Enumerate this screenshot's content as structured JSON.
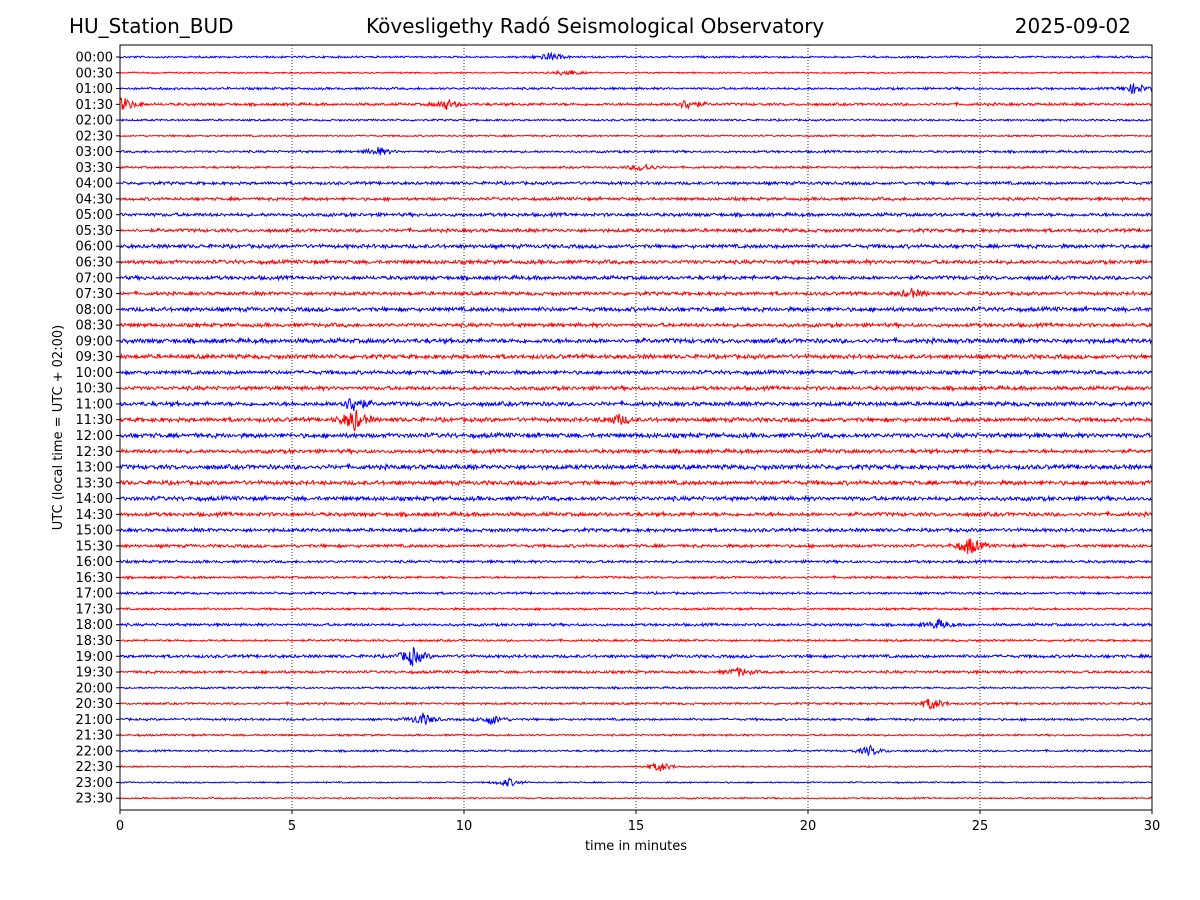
{
  "header": {
    "station": "HU_Station_BUD",
    "observatory": "Kövesligethy Radó Seismological Observatory",
    "date": "2025-09-02"
  },
  "colors": {
    "even_row": "#0000ff",
    "odd_row": "#ff0000",
    "grid": "#000000"
  },
  "chart_data": {
    "type": "line",
    "title": "Kövesligethy Radó Seismological Observatory",
    "xlabel": "time in minutes",
    "ylabel": "UTC (local time = UTC + 02:00)",
    "xlim": [
      0,
      30
    ],
    "xticks": [
      0,
      5,
      10,
      15,
      20,
      25,
      30
    ],
    "grid": "vertical dotted",
    "rows": [
      "00:00",
      "00:30",
      "01:00",
      "01:30",
      "02:00",
      "02:30",
      "03:00",
      "03:30",
      "04:00",
      "04:30",
      "05:00",
      "05:30",
      "06:00",
      "06:30",
      "07:00",
      "07:30",
      "08:00",
      "08:30",
      "09:00",
      "09:30",
      "10:00",
      "10:30",
      "11:00",
      "11:30",
      "12:00",
      "12:30",
      "13:00",
      "13:30",
      "14:00",
      "14:30",
      "15:00",
      "15:30",
      "16:00",
      "16:30",
      "17:00",
      "17:30",
      "18:00",
      "18:30",
      "19:00",
      "19:30",
      "20:00",
      "20:30",
      "21:00",
      "21:30",
      "22:00",
      "22:30",
      "23:00",
      "23:30"
    ],
    "row_noise": [
      0.25,
      0.2,
      0.3,
      0.35,
      0.25,
      0.22,
      0.3,
      0.28,
      0.4,
      0.4,
      0.45,
      0.45,
      0.5,
      0.5,
      0.5,
      0.45,
      0.55,
      0.5,
      0.6,
      0.55,
      0.5,
      0.5,
      0.55,
      0.55,
      0.6,
      0.5,
      0.6,
      0.55,
      0.55,
      0.5,
      0.45,
      0.4,
      0.35,
      0.3,
      0.3,
      0.28,
      0.35,
      0.28,
      0.4,
      0.35,
      0.25,
      0.28,
      0.3,
      0.25,
      0.25,
      0.2,
      0.18,
      0.2
    ],
    "events": [
      {
        "row": "00:00",
        "minute": 12.5,
        "amplitude": 0.6
      },
      {
        "row": "00:30",
        "minute": 13.0,
        "amplitude": 0.5
      },
      {
        "row": "01:00",
        "minute": 29.5,
        "amplitude": 0.8
      },
      {
        "row": "01:30",
        "minute": 0.1,
        "amplitude": 1.0
      },
      {
        "row": "01:30",
        "minute": 9.5,
        "amplitude": 0.7
      },
      {
        "row": "01:30",
        "minute": 16.5,
        "amplitude": 0.7
      },
      {
        "row": "03:00",
        "minute": 7.5,
        "amplitude": 0.6
      },
      {
        "row": "03:30",
        "minute": 15.2,
        "amplitude": 0.6
      },
      {
        "row": "07:30",
        "minute": 23.0,
        "amplitude": 0.6
      },
      {
        "row": "11:00",
        "minute": 6.8,
        "amplitude": 1.2
      },
      {
        "row": "11:30",
        "minute": 6.8,
        "amplitude": 1.6
      },
      {
        "row": "11:30",
        "minute": 14.5,
        "amplitude": 0.7
      },
      {
        "row": "15:30",
        "minute": 24.7,
        "amplitude": 1.3
      },
      {
        "row": "18:00",
        "minute": 23.8,
        "amplitude": 0.7
      },
      {
        "row": "19:00",
        "minute": 8.5,
        "amplitude": 1.3
      },
      {
        "row": "19:30",
        "minute": 18.0,
        "amplitude": 0.6
      },
      {
        "row": "20:30",
        "minute": 23.6,
        "amplitude": 0.9
      },
      {
        "row": "21:00",
        "minute": 8.8,
        "amplitude": 0.9
      },
      {
        "row": "21:00",
        "minute": 10.8,
        "amplitude": 0.7
      },
      {
        "row": "22:00",
        "minute": 21.8,
        "amplitude": 0.7
      },
      {
        "row": "22:30",
        "minute": 15.7,
        "amplitude": 0.7
      },
      {
        "row": "23:00",
        "minute": 11.3,
        "amplitude": 0.6
      }
    ]
  }
}
